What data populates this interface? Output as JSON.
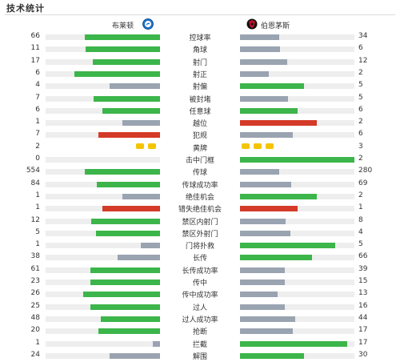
{
  "header": {
    "title": "技术统计"
  },
  "teams": {
    "home": {
      "name": "布莱顿",
      "badge_icon": "brighton-crest-icon",
      "badge_color": "#1e73c8"
    },
    "away": {
      "name": "伯恩茅斯",
      "badge_icon": "bournemouth-crest-icon",
      "badge_color": "#c8102e"
    }
  },
  "colors": {
    "leader": "#3cb54a",
    "trailer": "#9aa3b0",
    "bad_leader": "#d43a28",
    "track": "#eeeeee",
    "yellow_card": "#f5c400"
  },
  "stats": [
    {
      "label": "控球率",
      "home": "66",
      "away": "34",
      "home_fill": 0.66,
      "away_fill": 0.34,
      "home_color": "leader",
      "away_color": "trailer"
    },
    {
      "label": "角球",
      "home": "11",
      "away": "6",
      "home_fill": 0.65,
      "away_fill": 0.35,
      "home_color": "leader",
      "away_color": "trailer"
    },
    {
      "label": "射门",
      "home": "17",
      "away": "12",
      "home_fill": 0.59,
      "away_fill": 0.41,
      "home_color": "leader",
      "away_color": "trailer"
    },
    {
      "label": "射正",
      "home": "6",
      "away": "2",
      "home_fill": 0.75,
      "away_fill": 0.25,
      "home_color": "leader",
      "away_color": "trailer"
    },
    {
      "label": "射偏",
      "home": "4",
      "away": "5",
      "home_fill": 0.44,
      "away_fill": 0.56,
      "home_color": "trailer",
      "away_color": "leader"
    },
    {
      "label": "被封堵",
      "home": "7",
      "away": "5",
      "home_fill": 0.58,
      "away_fill": 0.42,
      "home_color": "leader",
      "away_color": "trailer"
    },
    {
      "label": "任意球",
      "home": "6",
      "away": "6",
      "home_fill": 0.5,
      "away_fill": 0.5,
      "home_color": "leader",
      "away_color": "leader"
    },
    {
      "label": "越位",
      "home": "1",
      "away": "2",
      "home_fill": 0.33,
      "away_fill": 0.67,
      "home_color": "trailer",
      "away_color": "bad_leader"
    },
    {
      "label": "犯规",
      "home": "7",
      "away": "6",
      "home_fill": 0.54,
      "away_fill": 0.46,
      "home_color": "bad_leader",
      "away_color": "trailer"
    },
    {
      "label": "黄牌",
      "home": "2",
      "away": "3",
      "home_cards": 2,
      "away_cards": 3
    },
    {
      "label": "击中门框",
      "home": "0",
      "away": "2",
      "home_fill": 0.0,
      "away_fill": 1.0,
      "home_color": "trailer",
      "away_color": "leader"
    },
    {
      "label": "传球",
      "home": "554",
      "away": "280",
      "home_fill": 0.66,
      "away_fill": 0.34,
      "home_color": "leader",
      "away_color": "trailer"
    },
    {
      "label": "传球成功率",
      "home": "84",
      "away": "69",
      "home_fill": 0.55,
      "away_fill": 0.45,
      "home_color": "leader",
      "away_color": "trailer"
    },
    {
      "label": "绝佳机会",
      "home": "1",
      "away": "2",
      "home_fill": 0.33,
      "away_fill": 0.67,
      "home_color": "trailer",
      "away_color": "leader"
    },
    {
      "label": "错失绝佳机会",
      "home": "1",
      "away": "1",
      "home_fill": 0.5,
      "away_fill": 0.5,
      "home_color": "bad_leader",
      "away_color": "bad_leader"
    },
    {
      "label": "禁区内射门",
      "home": "12",
      "away": "8",
      "home_fill": 0.6,
      "away_fill": 0.4,
      "home_color": "leader",
      "away_color": "trailer"
    },
    {
      "label": "禁区外射门",
      "home": "5",
      "away": "4",
      "home_fill": 0.56,
      "away_fill": 0.44,
      "home_color": "leader",
      "away_color": "trailer"
    },
    {
      "label": "门将扑救",
      "home": "1",
      "away": "5",
      "home_fill": 0.17,
      "away_fill": 0.83,
      "home_color": "trailer",
      "away_color": "leader"
    },
    {
      "label": "长传",
      "home": "38",
      "away": "66",
      "home_fill": 0.37,
      "away_fill": 0.63,
      "home_color": "trailer",
      "away_color": "leader"
    },
    {
      "label": "长传成功率",
      "home": "61",
      "away": "39",
      "home_fill": 0.61,
      "away_fill": 0.39,
      "home_color": "leader",
      "away_color": "trailer"
    },
    {
      "label": "传中",
      "home": "23",
      "away": "15",
      "home_fill": 0.61,
      "away_fill": 0.39,
      "home_color": "leader",
      "away_color": "trailer"
    },
    {
      "label": "传中成功率",
      "home": "26",
      "away": "13",
      "home_fill": 0.67,
      "away_fill": 0.33,
      "home_color": "leader",
      "away_color": "trailer"
    },
    {
      "label": "过人",
      "home": "25",
      "away": "16",
      "home_fill": 0.61,
      "away_fill": 0.39,
      "home_color": "leader",
      "away_color": "trailer"
    },
    {
      "label": "过人成功率",
      "home": "48",
      "away": "44",
      "home_fill": 0.52,
      "away_fill": 0.48,
      "home_color": "leader",
      "away_color": "trailer"
    },
    {
      "label": "抢断",
      "home": "20",
      "away": "17",
      "home_fill": 0.54,
      "away_fill": 0.46,
      "home_color": "leader",
      "away_color": "trailer"
    },
    {
      "label": "拦截",
      "home": "1",
      "away": "17",
      "home_fill": 0.06,
      "away_fill": 0.94,
      "home_color": "trailer",
      "away_color": "leader"
    },
    {
      "label": "解围",
      "home": "24",
      "away": "30",
      "home_fill": 0.44,
      "away_fill": 0.56,
      "home_color": "trailer",
      "away_color": "leader"
    }
  ]
}
